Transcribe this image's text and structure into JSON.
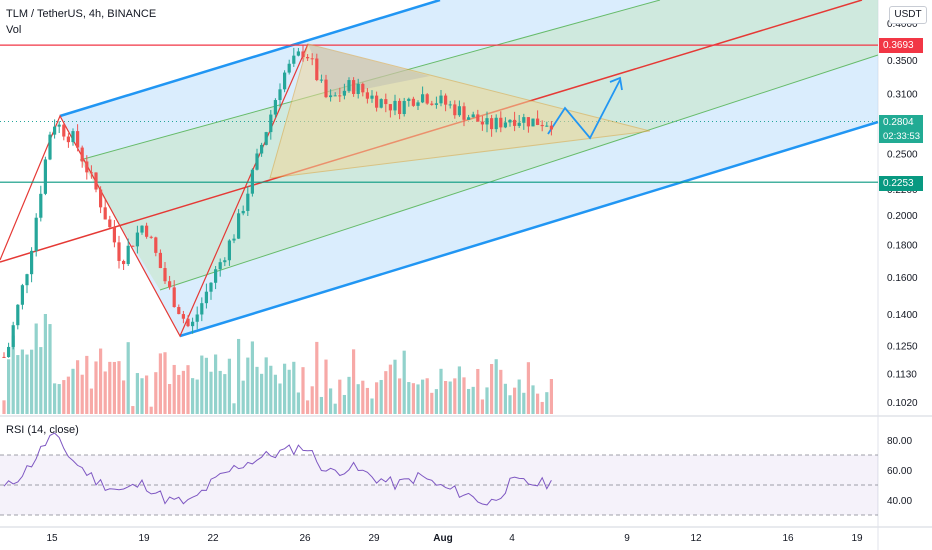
{
  "header": {
    "symbol": "TLM / TetherUS, 4h, BINANCE",
    "indicator": "Vol"
  },
  "rsi": {
    "label": "RSI (14, close)"
  },
  "currency": "USDT",
  "price_labels": {
    "resistance": {
      "value": "0.3693",
      "color": "#f23645"
    },
    "current": {
      "value": "0.2804",
      "countdown": "02:33:53",
      "color": "#22ab94"
    },
    "support": {
      "value": "0.2253",
      "color": "#089981"
    }
  },
  "chart_data": [
    {
      "type": "candlestick",
      "title": "TLM / TetherUS, 4h, BINANCE",
      "y_scale": "log",
      "y_ticks": [
        "0.4000",
        "0.3500",
        "0.3100",
        "0.2800",
        "0.2500",
        "0.2200",
        "0.2000",
        "0.1800",
        "0.1600",
        "0.1400",
        "0.1250",
        "0.1130",
        "0.1020"
      ],
      "x_ticks": [
        "15",
        "19",
        "22",
        "26",
        "29",
        "Aug",
        "4",
        "9",
        "12",
        "16",
        "19"
      ],
      "close_path": [
        {
          "date": "Jul 13",
          "close": 0.12
        },
        {
          "date": "Jul 14",
          "close": 0.17
        },
        {
          "date": "Jul 15",
          "close": 0.282
        },
        {
          "date": "Jul 16",
          "close": 0.262
        },
        {
          "date": "Jul 17",
          "close": 0.215
        },
        {
          "date": "Jul 18",
          "close": 0.17
        },
        {
          "date": "Jul 19",
          "close": 0.195
        },
        {
          "date": "Jul 20",
          "close": 0.155
        },
        {
          "date": "Jul 21",
          "close": 0.132
        },
        {
          "date": "Jul 22",
          "close": 0.16
        },
        {
          "date": "Jul 23",
          "close": 0.19
        },
        {
          "date": "Jul 24",
          "close": 0.25
        },
        {
          "date": "Jul 25",
          "close": 0.33
        },
        {
          "date": "Jul 26",
          "close": 0.365
        },
        {
          "date": "Jul 27",
          "close": 0.3
        },
        {
          "date": "Jul 28",
          "close": 0.32
        },
        {
          "date": "Jul 29",
          "close": 0.305
        },
        {
          "date": "Jul 30",
          "close": 0.295
        },
        {
          "date": "Jul 31",
          "close": 0.31
        },
        {
          "date": "Aug 1",
          "close": 0.3
        },
        {
          "date": "Aug 2",
          "close": 0.288
        },
        {
          "date": "Aug 3",
          "close": 0.275
        },
        {
          "date": "Aug 4",
          "close": 0.285
        },
        {
          "date": "Aug 5",
          "close": 0.2804
        }
      ],
      "resistance_level": 0.3693,
      "support_level": 0.2253,
      "last_price": 0.2804
    },
    {
      "type": "line",
      "title": "RSI (14, close)",
      "y_ticks": [
        "80.00",
        "60.00",
        "40.00"
      ],
      "levels": [
        70,
        50,
        30
      ],
      "values": [
        {
          "date": "Jul 13",
          "value": 48
        },
        {
          "date": "Jul 14",
          "value": 62
        },
        {
          "date": "Jul 15",
          "value": 84
        },
        {
          "date": "Jul 16",
          "value": 65
        },
        {
          "date": "Jul 17",
          "value": 52
        },
        {
          "date": "Jul 18",
          "value": 46
        },
        {
          "date": "Jul 19",
          "value": 51
        },
        {
          "date": "Jul 20",
          "value": 40
        },
        {
          "date": "Jul 21",
          "value": 38
        },
        {
          "date": "Jul 22",
          "value": 52
        },
        {
          "date": "Jul 23",
          "value": 62
        },
        {
          "date": "Jul 24",
          "value": 68
        },
        {
          "date": "Jul 25",
          "value": 72
        },
        {
          "date": "Jul 26",
          "value": 76
        },
        {
          "date": "Jul 27",
          "value": 58
        },
        {
          "date": "Jul 28",
          "value": 62
        },
        {
          "date": "Jul 29",
          "value": 55
        },
        {
          "date": "Jul 30",
          "value": 50
        },
        {
          "date": "Jul 31",
          "value": 56
        },
        {
          "date": "Aug 1",
          "value": 48
        },
        {
          "date": "Aug 2",
          "value": 44
        },
        {
          "date": "Aug 3",
          "value": 37
        },
        {
          "date": "Aug 4",
          "value": 52
        },
        {
          "date": "Aug 5",
          "value": 51
        }
      ]
    }
  ],
  "colors": {
    "up": "#26a69a",
    "down": "#ef5350",
    "channel_blue": "#2196f3",
    "channel_fill": "#bbdefb",
    "inner_fill": "#c8e6c9",
    "pitchfork_red": "#e53935",
    "triangle_fill": "#f0d79a",
    "rsi_line": "#7e57c2"
  }
}
